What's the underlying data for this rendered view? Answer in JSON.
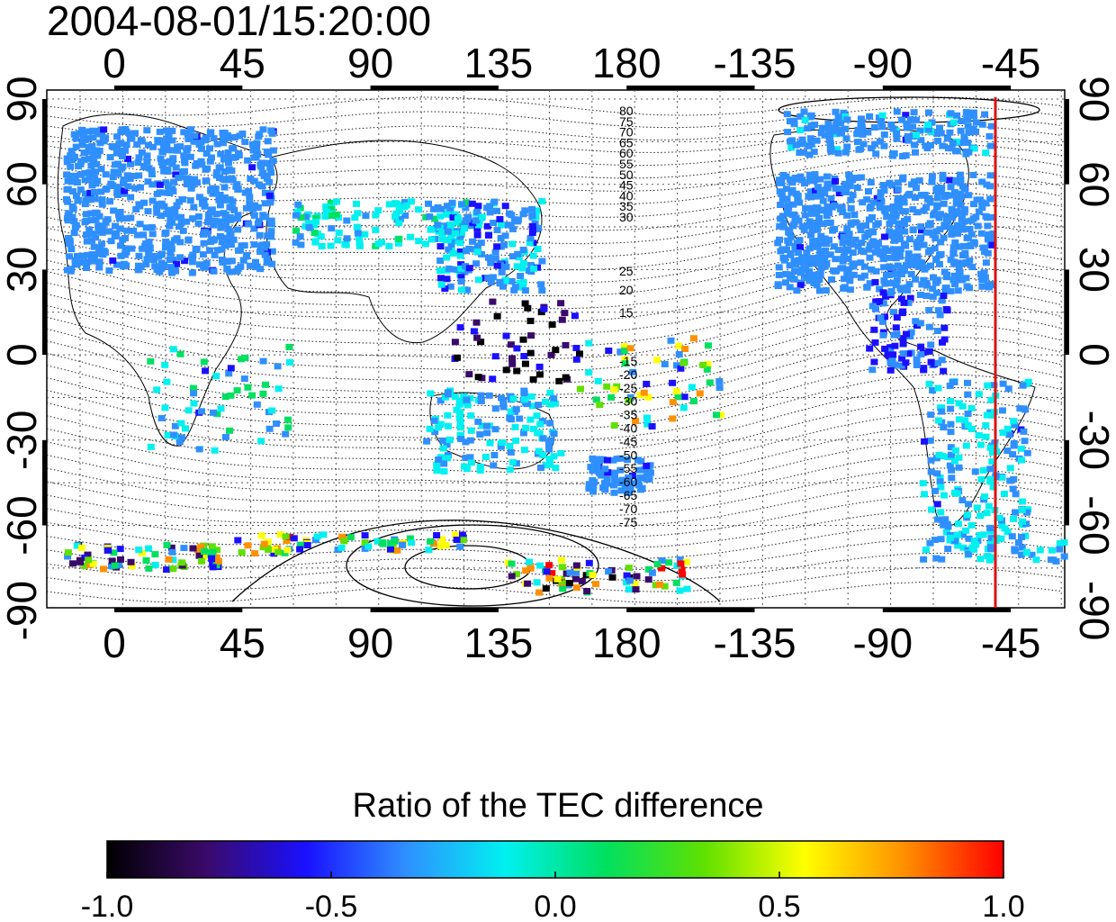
{
  "title": "2004-08-01/15:20:00",
  "map": {
    "top_axis_labels": [
      "0",
      "45",
      "90",
      "135",
      "180",
      "-135",
      "-90",
      "-45"
    ],
    "bottom_axis_labels": [
      "0",
      "45",
      "90",
      "135",
      "180",
      "-135",
      "-90",
      "-45"
    ],
    "left_axis_labels": [
      "90",
      "60",
      "30",
      "0",
      "-30",
      "-60",
      "-90"
    ],
    "right_axis_labels": [
      "90",
      "60",
      "30",
      "0",
      "-30",
      "-60",
      "-90"
    ],
    "grid": "dotted",
    "magnetic_latitude_labels": [
      "80",
      "75",
      "70",
      "65",
      "60",
      "55",
      "50",
      "45",
      "40",
      "35",
      "30",
      "25",
      "20",
      "15",
      "-15",
      "-20",
      "-25",
      "-30",
      "-35",
      "-40",
      "-45",
      "-50",
      "-55",
      "-60",
      "-65",
      "-70",
      "-75"
    ],
    "marker_line_color": "#dd1111"
  },
  "colorbar": {
    "title": "Ratio of the TEC difference",
    "min": -1.0,
    "max": 1.0,
    "tick_labels": [
      "-1.0",
      "-0.5",
      "0.0",
      "0.5",
      "1.0"
    ],
    "colormap": [
      "#000000",
      "#3a0a6a",
      "#1a10ff",
      "#2f8fff",
      "#00f0f0",
      "#00e060",
      "#60e000",
      "#ffff00",
      "#ff9000",
      "#ff0000"
    ]
  }
}
